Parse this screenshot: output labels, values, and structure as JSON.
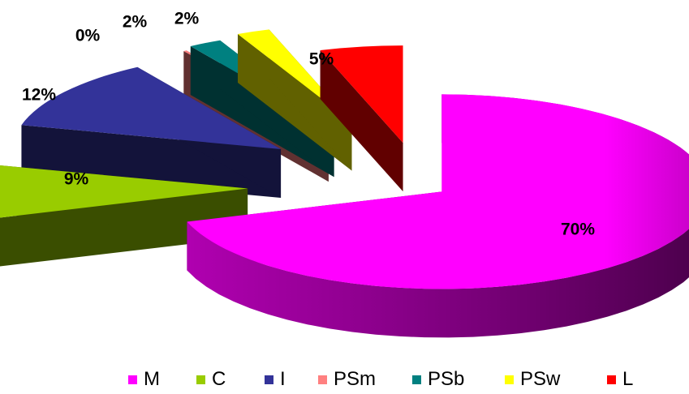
{
  "chart_data": {
    "type": "pie",
    "title": "",
    "categories": [
      "M",
      "C",
      "I",
      "PSm",
      "PSb",
      "PSw",
      "L"
    ],
    "values": [
      70,
      9,
      12,
      0,
      2,
      2,
      5
    ],
    "labels": [
      "70%",
      "9%",
      "12%",
      "0%",
      "2%",
      "2%",
      "5%"
    ],
    "colors": [
      "#ff00ff",
      "#99cc00",
      "#333399",
      "#ff8080",
      "#008080",
      "#ffff00",
      "#ff0000"
    ],
    "legend_position": "bottom",
    "exploded": true,
    "three_d": true
  }
}
